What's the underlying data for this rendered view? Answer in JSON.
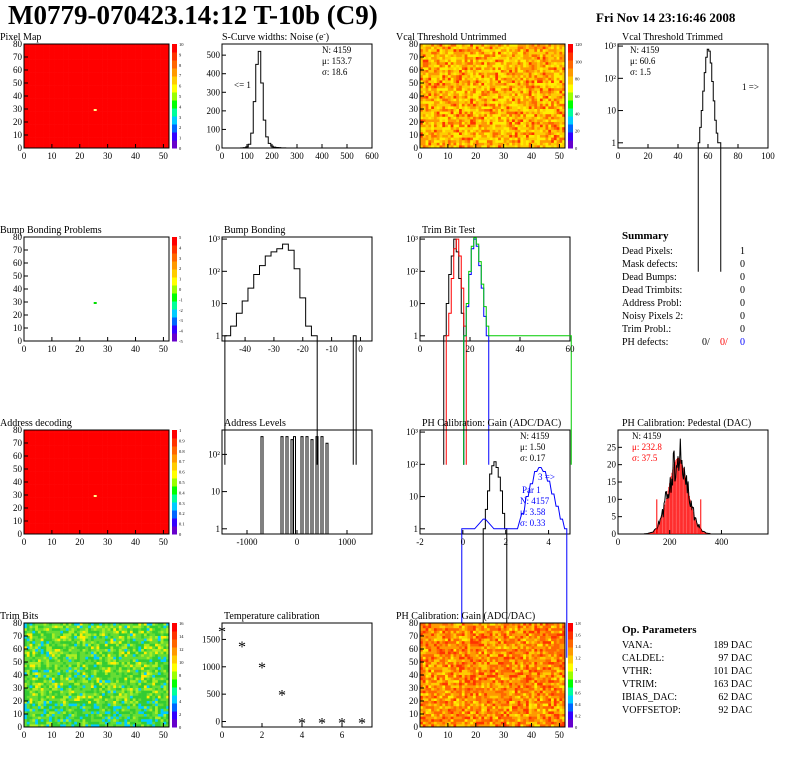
{
  "header": {
    "title": "M0779-070423.14:12 T-10b (C9)",
    "date": "Fri Nov 14 23:16:46 2008"
  },
  "colors": {
    "map_fill": "#ff0000",
    "hist_line": "#000000",
    "trim_red": "#ff0000",
    "trim_blue": "#0000ff",
    "trim_green": "#00cc00",
    "stats_blue": "#0000ff",
    "stats_red": "#ff0000"
  },
  "chart_data": [
    {
      "id": "pixel-map",
      "type": "heatmap",
      "title": "Pixel Map",
      "xlim": [
        0,
        52
      ],
      "ylim": [
        0,
        80
      ],
      "x_ticks": [
        "0",
        "10",
        "20",
        "30",
        "40",
        "50"
      ],
      "y_ticks": [
        "0",
        "10",
        "20",
        "30",
        "40",
        "50",
        "60",
        "70",
        "80"
      ],
      "palette_labels": [
        "0",
        "1",
        "2",
        "3",
        "4",
        "5",
        "6",
        "7",
        "8",
        "9",
        "10"
      ],
      "fill": "uniform-red",
      "special_pixels": [
        {
          "col": 25,
          "row": 30
        }
      ]
    },
    {
      "id": "scurve-widths",
      "type": "histogram",
      "title": "S-Curve widths: Noise (e",
      "title_sup": "-",
      "title_end": ")",
      "xlim": [
        0,
        600
      ],
      "ylim": [
        0,
        560
      ],
      "x_ticks": [
        "0",
        "100",
        "200",
        "300",
        "400",
        "500",
        "600"
      ],
      "y_ticks": [
        "0",
        "100",
        "200",
        "300",
        "400",
        "500"
      ],
      "stats": [
        "N: 4159",
        "μ: 153.7",
        "σ: 18.6"
      ],
      "overflow_label": "<= 1",
      "bins_x": [
        80,
        90,
        100,
        110,
        120,
        130,
        140,
        150,
        160,
        170,
        180,
        190,
        200,
        210,
        220,
        230,
        240,
        250,
        260,
        270
      ],
      "bins_y": [
        1,
        2,
        6,
        20,
        80,
        250,
        450,
        520,
        350,
        150,
        60,
        25,
        10,
        5,
        3,
        2,
        1,
        1,
        0,
        0
      ]
    },
    {
      "id": "vcal-untrimmed",
      "type": "heatmap",
      "title": "Vcal Threshold Untrimmed",
      "xlim": [
        0,
        52
      ],
      "ylim": [
        0,
        80
      ],
      "x_ticks": [
        "0",
        "10",
        "20",
        "30",
        "40",
        "50"
      ],
      "y_ticks": [
        "0",
        "10",
        "20",
        "30",
        "40",
        "50",
        "60",
        "70",
        "80"
      ],
      "palette_labels": [
        "0",
        "20",
        "40",
        "60",
        "80",
        "100",
        "120"
      ],
      "fill": "noisy-orange-yellow"
    },
    {
      "id": "vcal-trimmed",
      "type": "histogram",
      "title": "Vcal Threshold Trimmed",
      "scale": "log",
      "xlim": [
        0,
        100
      ],
      "x_ticks": [
        "0",
        "20",
        "40",
        "60",
        "80",
        "100"
      ],
      "y_ticks": [
        "1",
        "10",
        "10²",
        "10³"
      ],
      "stats": [
        "N: 4159",
        "μ: 60.6",
        "σ:  1.5"
      ],
      "overflow_label": "1 =>",
      "bins_x": [
        54,
        55,
        56,
        57,
        58,
        59,
        60,
        61,
        62,
        63,
        64,
        65,
        66,
        67,
        68
      ],
      "bins_y": [
        1,
        3,
        10,
        40,
        150,
        450,
        800,
        700,
        300,
        80,
        20,
        5,
        2,
        1,
        1
      ]
    },
    {
      "id": "bump-bonding-problems",
      "type": "heatmap",
      "title": "Bump Bonding Problems",
      "xlim": [
        0,
        52
      ],
      "ylim": [
        0,
        80
      ],
      "x_ticks": [
        "0",
        "10",
        "20",
        "30",
        "40",
        "50"
      ],
      "y_ticks": [
        "0",
        "10",
        "20",
        "30",
        "40",
        "50",
        "60",
        "70",
        "80"
      ],
      "palette_labels": [
        "-5",
        "-4",
        "-3",
        "-2",
        "-1",
        "0",
        "1",
        "2",
        "3",
        "4",
        "5"
      ],
      "fill": "empty",
      "special_pixels": [
        {
          "col": 25,
          "row": 30
        }
      ]
    },
    {
      "id": "bump-bonding",
      "type": "histogram",
      "title": "Bump Bonding",
      "scale": "log",
      "xlim": [
        -48,
        4
      ],
      "x_ticks": [
        "-40",
        "-30",
        "-20",
        "-10",
        "0"
      ],
      "y_ticks": [
        "1",
        "10",
        "10²",
        "10³"
      ],
      "bins_x": [
        -46,
        -44,
        -42,
        -40,
        -38,
        -36,
        -34,
        -32,
        -30,
        -28,
        -26,
        -24,
        -22,
        -20,
        -18,
        -16,
        -2
      ],
      "bins_y": [
        1,
        2,
        5,
        12,
        30,
        80,
        150,
        300,
        400,
        500,
        700,
        450,
        120,
        15,
        2,
        1,
        1
      ]
    },
    {
      "id": "trim-bit-test",
      "type": "histogram",
      "title": "Trim Bit Test",
      "scale": "log",
      "xlim": [
        0,
        60
      ],
      "x_ticks": [
        "0",
        "20",
        "40",
        "60"
      ],
      "y_ticks": [
        "1",
        "10",
        "10²",
        "10³"
      ],
      "series": [
        {
          "name": "trim-1",
          "color": "#000000",
          "x": [
            10,
            11,
            12,
            13,
            14,
            15,
            16,
            17
          ],
          "y": [
            1,
            10,
            80,
            300,
            1000,
            400,
            60,
            5
          ]
        },
        {
          "name": "trim-2",
          "color": "#ff0000",
          "x": [
            11,
            12,
            13,
            14,
            15,
            16,
            17,
            18
          ],
          "y": [
            1,
            5,
            60,
            500,
            1000,
            300,
            30,
            2
          ]
        },
        {
          "name": "trim-3",
          "color": "#0000ff",
          "x": [
            18,
            19,
            20,
            21,
            22,
            23,
            24,
            25,
            26,
            27
          ],
          "y": [
            1,
            8,
            80,
            500,
            1000,
            600,
            150,
            30,
            4,
            1
          ]
        },
        {
          "name": "trim-4",
          "color": "#00cc00",
          "x": [
            18,
            19,
            20,
            21,
            22,
            23,
            24,
            25,
            26,
            27,
            28,
            45,
            60
          ],
          "y": [
            1,
            10,
            100,
            600,
            1100,
            700,
            200,
            40,
            8,
            2,
            1,
            1,
            1
          ]
        }
      ]
    },
    {
      "id": "address-decoding",
      "type": "heatmap",
      "title": "Address decoding",
      "xlim": [
        0,
        52
      ],
      "ylim": [
        0,
        80
      ],
      "x_ticks": [
        "0",
        "10",
        "20",
        "30",
        "40",
        "50"
      ],
      "y_ticks": [
        "0",
        "10",
        "20",
        "30",
        "40",
        "50",
        "60",
        "70",
        "80"
      ],
      "palette_labels": [
        "0",
        "0.1",
        "0.2",
        "0.3",
        "0.4",
        "0.5",
        "0.6",
        "0.7",
        "0.8",
        "0.9",
        "1"
      ],
      "fill": "uniform-red",
      "special_pixels": [
        {
          "col": 25,
          "row": 30
        }
      ]
    },
    {
      "id": "address-levels",
      "type": "histogram",
      "title": "Address Levels",
      "scale": "log",
      "xlim": [
        -1500,
        1500
      ],
      "x_ticks": [
        "-1000",
        "0",
        "1000"
      ],
      "y_ticks": [
        "1",
        "10",
        "10²"
      ],
      "spikes_x": [
        -700,
        -300,
        -200,
        -100,
        -50,
        100,
        200,
        300,
        400,
        500,
        600
      ],
      "spikes_y": [
        300,
        300,
        300,
        250,
        300,
        300,
        300,
        250,
        300,
        300,
        200
      ]
    },
    {
      "id": "ph-gain",
      "type": "histogram",
      "title": "PH Calibration: Gain (ADC/DAC)",
      "scale": "log",
      "xlim": [
        -2,
        5
      ],
      "x_ticks": [
        "-2",
        "0",
        "2",
        "4"
      ],
      "y_ticks": [
        "1",
        "10",
        "10²",
        "10³"
      ],
      "stats": [
        "N: 4159",
        "μ: 1.50",
        "σ: 0.17"
      ],
      "stats2": [
        "N: 4157",
        "μ: 3.58",
        "σ: 0.33"
      ],
      "overflow_label": "3 =>",
      "par_label": "Par 1",
      "series": [
        {
          "name": "par-0",
          "color": "#000000",
          "x": [
            1.0,
            1.1,
            1.2,
            1.3,
            1.4,
            1.5,
            1.6,
            1.7,
            1.8,
            1.9,
            2.0
          ],
          "y": [
            1,
            4,
            15,
            50,
            90,
            120,
            80,
            40,
            15,
            3,
            1
          ]
        },
        {
          "name": "par-1",
          "color": "#0000ff",
          "x": [
            0,
            0.5,
            1.0,
            1.5,
            2.0,
            2.5,
            2.8,
            3.0,
            3.2,
            3.4,
            3.6,
            3.8,
            4.0,
            4.2,
            4.4,
            4.6,
            4.8
          ],
          "y": [
            1,
            1,
            2,
            1,
            1,
            1,
            3,
            10,
            25,
            60,
            80,
            60,
            30,
            12,
            5,
            2,
            1
          ]
        }
      ]
    },
    {
      "id": "ph-pedestal",
      "type": "histogram",
      "title": "PH Calibration: Pedestal (DAC)",
      "xlim": [
        0,
        580
      ],
      "x_ticks": [
        "0",
        "200",
        "400"
      ],
      "y_ticks": [
        "0",
        "5",
        "10",
        "15",
        "20",
        "25"
      ],
      "ylim": [
        0,
        30
      ],
      "stats": [
        "N: 4159",
        "μ: 232.8",
        "σ: 37.5"
      ],
      "fit_mu": 232.8,
      "fit_sigma": 37.5,
      "fit_amp": 22
    },
    {
      "id": "summary",
      "type": "table",
      "title": "Summary",
      "rows": [
        {
          "label": "Dead Pixels:",
          "value": "1"
        },
        {
          "label": "Mask defects:",
          "value": "0"
        },
        {
          "label": "Dead Bumps:",
          "value": "0"
        },
        {
          "label": "Dead Trimbits:",
          "value": "0"
        },
        {
          "label": "Address Probl:",
          "value": "0"
        },
        {
          "label": "Noisy Pixels 2:",
          "value": "0"
        },
        {
          "label": "Trim Probl.:",
          "value": "0"
        }
      ],
      "ph_defects": {
        "label": "PH defects:",
        "values": [
          "0/",
          "0/",
          "0"
        ]
      }
    },
    {
      "id": "trim-bits",
      "type": "heatmap",
      "title": "Trim Bits",
      "xlim": [
        0,
        52
      ],
      "ylim": [
        0,
        80
      ],
      "x_ticks": [
        "0",
        "10",
        "20",
        "30",
        "40",
        "50"
      ],
      "y_ticks": [
        "0",
        "10",
        "20",
        "30",
        "40",
        "50",
        "60",
        "70",
        "80"
      ],
      "palette_labels": [
        "0",
        "2",
        "4",
        "6",
        "8",
        "10",
        "12",
        "14",
        "16"
      ],
      "fill": "noisy-green-yellow"
    },
    {
      "id": "temperature-calibration",
      "type": "scatter",
      "title": "Temperature calibration",
      "xlim": [
        0,
        7.5
      ],
      "ylim": [
        -100,
        1800
      ],
      "x_ticks": [
        "0",
        "2",
        "4",
        "6"
      ],
      "y_ticks": [
        "0",
        "500",
        "1000",
        "1500"
      ],
      "x": [
        0,
        1,
        2,
        3,
        4,
        5,
        6,
        7
      ],
      "y": [
        1650,
        1380,
        1000,
        490,
        -20,
        -20,
        -20,
        -20
      ]
    },
    {
      "id": "ph-gain-map",
      "type": "heatmap",
      "title": "PH Calibration: Gain (ADC/DAC)",
      "xlim": [
        0,
        52
      ],
      "ylim": [
        0,
        80
      ],
      "x_ticks": [
        "0",
        "10",
        "20",
        "30",
        "40",
        "50"
      ],
      "y_ticks": [
        "0",
        "10",
        "20",
        "30",
        "40",
        "50",
        "60",
        "70",
        "80"
      ],
      "palette_labels": [
        "0",
        "0.2",
        "0.4",
        "0.6",
        "0.8",
        "1",
        "1.2",
        "1.4",
        "1.6",
        "1.8"
      ],
      "fill": "noisy-orange-red"
    },
    {
      "id": "op-parameters",
      "type": "table",
      "title": "Op. Parameters",
      "rows": [
        {
          "label": "VANA:",
          "value": "189 DAC"
        },
        {
          "label": "CALDEL:",
          "value": "97 DAC"
        },
        {
          "label": "VTHR:",
          "value": "101 DAC"
        },
        {
          "label": "VTRIM:",
          "value": "163 DAC"
        },
        {
          "label": "IBIAS_DAC:",
          "value": "62 DAC"
        },
        {
          "label": "VOFFSETOP:",
          "value": "92 DAC"
        }
      ]
    }
  ]
}
